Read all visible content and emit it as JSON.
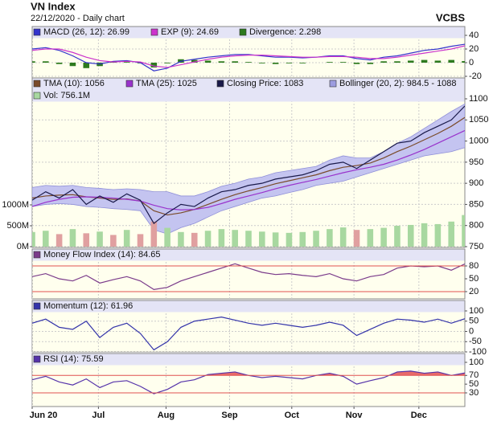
{
  "header": {
    "title": "VN Index",
    "subtitle": "22/12/2020 - Daily chart",
    "source": "VCBS"
  },
  "chart_data": [
    {
      "type": "line",
      "ylim": [
        -20,
        40
      ],
      "yticks": [
        -20,
        0,
        20,
        40
      ],
      "grid": true,
      "series": [
        {
          "name": "MACD (26, 12): 26.99",
          "color": "#3333cc",
          "values": [
            20,
            22,
            18,
            10,
            0,
            -2,
            2,
            3,
            0,
            -12,
            -8,
            2,
            5,
            8,
            10,
            12,
            12,
            10,
            8,
            8,
            7,
            8,
            10,
            10,
            6,
            4,
            8,
            10,
            14,
            18,
            20,
            24,
            26.99
          ]
        },
        {
          "name": "EXP (9): 24.69",
          "color": "#cc33cc",
          "values": [
            18,
            20,
            20,
            15,
            8,
            3,
            1,
            2,
            1,
            -5,
            -7,
            -3,
            1,
            5,
            8,
            10,
            11,
            11,
            10,
            9,
            8,
            8,
            9,
            9,
            8,
            6,
            6,
            8,
            11,
            14,
            17,
            20,
            24.69
          ]
        },
        {
          "name": "Divergence: 2.298",
          "color": "#2d7a1e",
          "style": "bar",
          "values": [
            2,
            2,
            -2,
            -5,
            -8,
            -5,
            1,
            1,
            -1,
            -7,
            -1,
            5,
            4,
            3,
            2,
            2,
            1,
            -1,
            -2,
            -1,
            -1,
            0,
            1,
            1,
            -2,
            -2,
            2,
            2,
            3,
            4,
            3,
            4,
            2.298
          ]
        }
      ]
    },
    {
      "type": "line",
      "ylim": [
        750,
        1100
      ],
      "yticks": [
        750,
        800,
        850,
        900,
        950,
        1000,
        1050,
        1100
      ],
      "grid": true,
      "y2lim": [
        0,
        1000
      ],
      "y2ticks": [
        {
          "value": 0,
          "label": "0M"
        },
        {
          "value": 500,
          "label": "500M"
        },
        {
          "value": 1000,
          "label": "1000M"
        }
      ],
      "series": [
        {
          "name": "TMA (10): 1056",
          "color": "#7a4b2a",
          "values": [
            865,
            870,
            872,
            873,
            868,
            865,
            862,
            863,
            858,
            835,
            825,
            830,
            838,
            850,
            862,
            873,
            882,
            890,
            899,
            906,
            913,
            920,
            930,
            938,
            942,
            948,
            960,
            975,
            988,
            1003,
            1018,
            1035,
            1056
          ]
        },
        {
          "name": "TMA (25): 1025",
          "color": "#9933cc",
          "values": [
            845,
            855,
            862,
            867,
            868,
            867,
            865,
            862,
            858,
            848,
            840,
            837,
            838,
            843,
            852,
            862,
            870,
            878,
            887,
            895,
            902,
            909,
            917,
            925,
            932,
            938,
            945,
            955,
            967,
            980,
            995,
            1010,
            1025
          ]
        },
        {
          "name": "Closing Price: 1083",
          "color": "#1a1a4a",
          "values": [
            860,
            880,
            865,
            885,
            850,
            870,
            855,
            875,
            860,
            805,
            830,
            850,
            845,
            865,
            880,
            885,
            895,
            900,
            910,
            915,
            920,
            930,
            945,
            950,
            935,
            955,
            975,
            995,
            1000,
            1020,
            1035,
            1050,
            1083
          ]
        },
        {
          "name": "Bollinger (20, 2): 984.5 - 1088",
          "color": "#c4c4f0",
          "style": "band",
          "values": [
            890,
            895,
            893,
            895,
            890,
            888,
            885,
            887,
            885,
            880,
            880,
            870,
            870,
            880,
            893,
            900,
            910,
            915,
            925,
            930,
            935,
            940,
            955,
            965,
            960,
            960,
            975,
            995,
            1010,
            1030,
            1050,
            1070,
            1088
          ],
          "lower": [
            845,
            850,
            852,
            850,
            845,
            843,
            840,
            838,
            835,
            790,
            780,
            795,
            805,
            820,
            835,
            845,
            855,
            865,
            870,
            878,
            885,
            895,
            900,
            905,
            915,
            925,
            935,
            945,
            955,
            965,
            970,
            975,
            984.5
          ]
        },
        {
          "name": "Vol: 756.1M",
          "color": "#a8d8a0",
          "style": "bar",
          "axis": "y2",
          "values": [
            350,
            380,
            300,
            420,
            320,
            360,
            280,
            400,
            300,
            600,
            450,
            350,
            330,
            380,
            420,
            400,
            380,
            360,
            340,
            330,
            350,
            380,
            420,
            460,
            400,
            420,
            450,
            500,
            520,
            560,
            540,
            600,
            756.1
          ],
          "colors": [
            "#a8d8a0",
            "#a8d8a0",
            "#e0a0a0",
            "#a8d8a0",
            "#e0a0a0",
            "#a8d8a0",
            "#e0a0a0",
            "#a8d8a0",
            "#e0a0a0",
            "#e0a0a0",
            "#a8d8a0",
            "#a8d8a0",
            "#e0a0a0",
            "#a8d8a0",
            "#a8d8a0",
            "#a8d8a0",
            "#a8d8a0",
            "#a8d8a0",
            "#a8d8a0",
            "#a8d8a0",
            "#a8d8a0",
            "#a8d8a0",
            "#a8d8a0",
            "#a8d8a0",
            "#e0a0a0",
            "#a8d8a0",
            "#a8d8a0",
            "#a8d8a0",
            "#a8d8a0",
            "#a8d8a0",
            "#a8d8a0",
            "#a8d8a0",
            "#a8d8a0"
          ]
        }
      ]
    },
    {
      "type": "line",
      "ylim": [
        20,
        80
      ],
      "yticks": [
        20,
        50,
        80
      ],
      "ref_lines": [
        20,
        80
      ],
      "ref_color": "#e05050",
      "series": [
        {
          "name": "Money Flow Index (14): 84.65",
          "color": "#7a3a8a",
          "values": [
            55,
            62,
            50,
            45,
            58,
            40,
            48,
            55,
            45,
            25,
            30,
            45,
            55,
            65,
            75,
            85,
            75,
            65,
            60,
            62,
            58,
            55,
            62,
            50,
            45,
            55,
            60,
            75,
            80,
            78,
            80,
            70,
            84.65
          ]
        }
      ]
    },
    {
      "type": "line",
      "ylim": [
        -100,
        100
      ],
      "yticks": [
        -100,
        -50,
        0,
        50,
        100
      ],
      "grid": true,
      "series": [
        {
          "name": "Momentum (12): 61.96",
          "color": "#3333aa",
          "values": [
            40,
            60,
            20,
            10,
            50,
            -30,
            20,
            40,
            -10,
            -90,
            -50,
            20,
            50,
            60,
            70,
            55,
            40,
            30,
            40,
            30,
            20,
            30,
            45,
            30,
            -20,
            10,
            40,
            60,
            55,
            45,
            60,
            40,
            61.96
          ]
        }
      ]
    },
    {
      "type": "line",
      "ylim": [
        30,
        100
      ],
      "yticks": [
        30,
        50,
        70,
        100
      ],
      "ref_lines": [
        30,
        70
      ],
      "ref_color": "#e05050",
      "fill_above": 70,
      "fill_color": "#e86a6a",
      "series": [
        {
          "name": "RSI (14): 75.59",
          "color": "#5533aa",
          "values": [
            60,
            68,
            55,
            48,
            62,
            42,
            55,
            58,
            45,
            28,
            38,
            55,
            60,
            72,
            75,
            78,
            70,
            65,
            68,
            65,
            62,
            70,
            75,
            68,
            50,
            58,
            65,
            78,
            80,
            75,
            78,
            70,
            75.59
          ]
        }
      ],
      "xticks": [
        {
          "value": 0,
          "label": "Jun 20"
        },
        {
          "value": 4.9,
          "label": "Jul"
        },
        {
          "value": 9.9,
          "label": "Aug"
        },
        {
          "value": 14.6,
          "label": "Sep"
        },
        {
          "value": 19.2,
          "label": "Oct"
        },
        {
          "value": 23.8,
          "label": "Nov"
        },
        {
          "value": 28.6,
          "label": "Dec"
        }
      ]
    }
  ]
}
